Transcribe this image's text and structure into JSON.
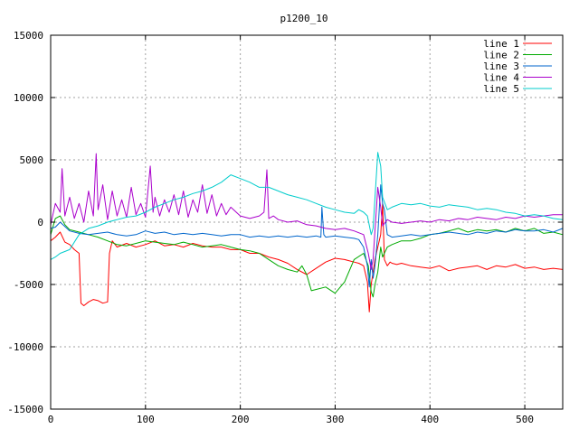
{
  "chart_data": {
    "type": "line",
    "title": "p1200_10",
    "xlabel": "",
    "ylabel": "",
    "xlim": [
      0,
      540
    ],
    "ylim": [
      -15000,
      15000
    ],
    "x_ticks": [
      0,
      100,
      200,
      300,
      400,
      500
    ],
    "y_ticks": [
      -15000,
      -10000,
      -5000,
      0,
      5000,
      10000,
      15000
    ],
    "grid": true,
    "legend_position": "top-right",
    "series": [
      {
        "name": "line 1",
        "color": "#ff0000",
        "x": [
          0,
          5,
          10,
          15,
          20,
          25,
          30,
          32,
          35,
          40,
          45,
          50,
          55,
          60,
          62,
          65,
          70,
          80,
          90,
          100,
          110,
          120,
          130,
          140,
          150,
          160,
          170,
          180,
          190,
          200,
          210,
          220,
          230,
          240,
          250,
          260,
          270,
          280,
          290,
          300,
          310,
          320,
          325,
          330,
          334,
          336,
          338,
          340,
          342,
          345,
          348,
          350,
          352,
          355,
          358,
          360,
          365,
          370,
          380,
          390,
          400,
          410,
          420,
          430,
          440,
          450,
          460,
          470,
          480,
          490,
          500,
          510,
          520,
          530,
          540
        ],
        "y": [
          -1500,
          -1200,
          -800,
          -1600,
          -1800,
          -2200,
          -2500,
          -6500,
          -6700,
          -6400,
          -6200,
          -6300,
          -6500,
          -6400,
          -2500,
          -1500,
          -2000,
          -1700,
          -2000,
          -1800,
          -1500,
          -1900,
          -1800,
          -2000,
          -1700,
          -1900,
          -2000,
          -2000,
          -2200,
          -2200,
          -2500,
          -2500,
          -2800,
          -3000,
          -3300,
          -3800,
          -4200,
          -3700,
          -3200,
          -2900,
          -3000,
          -3200,
          -3300,
          -3500,
          -4800,
          -7200,
          -5000,
          -4000,
          -3000,
          -2000,
          -1000,
          1500,
          -3000,
          -3500,
          -3200,
          -3300,
          -3400,
          -3300,
          -3500,
          -3600,
          -3700,
          -3500,
          -3900,
          -3700,
          -3600,
          -3500,
          -3800,
          -3500,
          -3600,
          -3400,
          -3700,
          -3600,
          -3800,
          -3700,
          -3800
        ]
      },
      {
        "name": "line 2",
        "color": "#00aa00",
        "x": [
          0,
          5,
          10,
          15,
          20,
          30,
          40,
          50,
          60,
          70,
          80,
          90,
          100,
          110,
          120,
          130,
          140,
          150,
          160,
          170,
          180,
          190,
          200,
          210,
          220,
          230,
          240,
          250,
          260,
          265,
          270,
          275,
          280,
          290,
          300,
          310,
          320,
          330,
          335,
          338,
          340,
          342,
          345,
          348,
          350,
          355,
          360,
          370,
          380,
          390,
          400,
          410,
          420,
          430,
          440,
          450,
          460,
          470,
          480,
          490,
          500,
          510,
          520,
          530,
          540
        ],
        "y": [
          -1000,
          300,
          500,
          -200,
          -600,
          -800,
          -1000,
          -1200,
          -1500,
          -1800,
          -1900,
          -1700,
          -1500,
          -1600,
          -1700,
          -1800,
          -1600,
          -1800,
          -2000,
          -1900,
          -1800,
          -2000,
          -2200,
          -2300,
          -2500,
          -3000,
          -3500,
          -3800,
          -4000,
          -3500,
          -4200,
          -5500,
          -5400,
          -5200,
          -5700,
          -4800,
          -3000,
          -2500,
          -3500,
          -5600,
          -6000,
          -5000,
          -4000,
          -2000,
          -2800,
          -2000,
          -1800,
          -1500,
          -1500,
          -1300,
          -1000,
          -900,
          -700,
          -500,
          -800,
          -600,
          -700,
          -600,
          -800,
          -500,
          -700,
          -500,
          -900,
          -800,
          -1000
        ]
      },
      {
        "name": "line 3",
        "color": "#0066cc",
        "x": [
          0,
          5,
          10,
          20,
          30,
          40,
          50,
          60,
          70,
          80,
          90,
          100,
          110,
          120,
          130,
          140,
          150,
          160,
          170,
          180,
          190,
          200,
          210,
          220,
          230,
          240,
          250,
          260,
          270,
          280,
          285,
          286,
          288,
          290,
          300,
          310,
          320,
          325,
          330,
          334,
          336,
          338,
          340,
          342,
          345,
          348,
          350,
          352,
          355,
          360,
          370,
          380,
          390,
          400,
          410,
          420,
          430,
          440,
          450,
          460,
          470,
          480,
          490,
          500,
          510,
          520,
          530,
          540
        ],
        "y": [
          -500,
          -400,
          0,
          -700,
          -900,
          -1000,
          -900,
          -800,
          -1000,
          -1100,
          -1000,
          -700,
          -900,
          -800,
          -1000,
          -900,
          -1000,
          -900,
          -1000,
          -1100,
          -1000,
          -1000,
          -1200,
          -1100,
          -1200,
          -1100,
          -1200,
          -1100,
          -1200,
          -1100,
          -1200,
          1200,
          -1000,
          -1200,
          -1100,
          -1200,
          -1300,
          -1400,
          -2000,
          -3500,
          -5200,
          -3000,
          -4500,
          -3500,
          -1000,
          3000,
          1500,
          1000,
          -1000,
          -1200,
          -1100,
          -1000,
          -1100,
          -1000,
          -900,
          -800,
          -900,
          -1000,
          -800,
          -900,
          -700,
          -800,
          -600,
          -700,
          -700,
          -600,
          -800,
          -500
        ]
      },
      {
        "name": "line 4",
        "color": "#aa00cc",
        "x": [
          0,
          5,
          10,
          12,
          15,
          20,
          25,
          30,
          35,
          40,
          45,
          48,
          50,
          55,
          60,
          65,
          70,
          75,
          80,
          85,
          90,
          95,
          100,
          105,
          108,
          110,
          115,
          120,
          125,
          130,
          135,
          140,
          145,
          150,
          155,
          160,
          165,
          170,
          175,
          180,
          185,
          190,
          200,
          210,
          220,
          225,
          228,
          230,
          235,
          240,
          250,
          260,
          270,
          280,
          290,
          300,
          310,
          320,
          330,
          335,
          338,
          340,
          345,
          348,
          350,
          355,
          360,
          370,
          380,
          390,
          400,
          410,
          420,
          430,
          440,
          450,
          460,
          470,
          480,
          490,
          500,
          510,
          520,
          530,
          540
        ],
        "y": [
          -200,
          1500,
          800,
          4300,
          500,
          2000,
          300,
          1500,
          0,
          2500,
          500,
          5500,
          1000,
          3000,
          200,
          2500,
          500,
          1800,
          400,
          2800,
          600,
          1500,
          400,
          4500,
          800,
          2000,
          500,
          1800,
          800,
          2200,
          600,
          2500,
          400,
          1800,
          800,
          3000,
          700,
          2200,
          500,
          1500,
          600,
          1200,
          500,
          300,
          500,
          800,
          4200,
          300,
          500,
          200,
          0,
          100,
          -200,
          -300,
          -500,
          -600,
          -500,
          -700,
          -1000,
          -2500,
          -3800,
          -3000,
          2800,
          1200,
          -300,
          200,
          0,
          -100,
          0,
          100,
          0,
          200,
          100,
          300,
          200,
          400,
          300,
          200,
          400,
          300,
          500,
          400,
          500,
          600,
          600
        ]
      },
      {
        "name": "line 5",
        "color": "#00cccc",
        "x": [
          0,
          5,
          10,
          20,
          30,
          40,
          50,
          60,
          70,
          80,
          90,
          100,
          110,
          120,
          130,
          140,
          150,
          160,
          170,
          180,
          190,
          200,
          210,
          220,
          230,
          240,
          250,
          260,
          270,
          280,
          290,
          300,
          310,
          320,
          325,
          330,
          334,
          338,
          340,
          345,
          348,
          350,
          355,
          360,
          370,
          380,
          390,
          400,
          410,
          420,
          430,
          440,
          450,
          460,
          470,
          480,
          490,
          500,
          510,
          520,
          530,
          540
        ],
        "y": [
          -3000,
          -2800,
          -2500,
          -2200,
          -1000,
          -500,
          -300,
          0,
          200,
          400,
          500,
          800,
          1200,
          1500,
          1800,
          2000,
          2300,
          2500,
          2800,
          3200,
          3800,
          3500,
          3200,
          2800,
          2800,
          2500,
          2200,
          2000,
          1800,
          1500,
          1200,
          1000,
          800,
          700,
          1000,
          800,
          500,
          -1000,
          -500,
          5600,
          4500,
          2000,
          1000,
          1200,
          1500,
          1400,
          1500,
          1300,
          1200,
          1400,
          1300,
          1200,
          1000,
          1100,
          1000,
          800,
          700,
          500,
          600,
          500,
          300,
          200
        ]
      }
    ]
  }
}
